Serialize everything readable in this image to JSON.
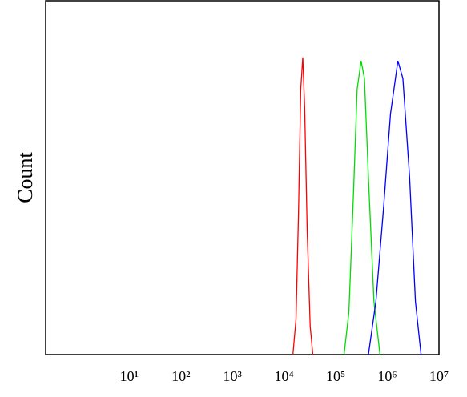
{
  "chart_data": {
    "type": "line",
    "ylabel": "Count",
    "xscale": "log",
    "xlim": [
      0.24,
      10000000
    ],
    "ylim": [
      0,
      100
    ],
    "xticks": [
      {
        "value": 10,
        "label": "10¹"
      },
      {
        "value": 100,
        "label": "10²"
      },
      {
        "value": 1000,
        "label": "10³"
      },
      {
        "value": 10000,
        "label": "10⁴"
      },
      {
        "value": 100000,
        "label": "10⁵"
      },
      {
        "value": 1000000,
        "label": "10⁶"
      },
      {
        "value": 10000000,
        "label": "10⁷"
      }
    ],
    "series": [
      {
        "color": "#ff0000",
        "x": [
          14800,
          17000,
          19000,
          21000,
          23000,
          25000,
          28000,
          32000,
          36000
        ],
        "values": [
          0,
          10,
          40,
          75,
          84,
          70,
          35,
          8,
          0
        ]
      },
      {
        "color": "#00dd00",
        "x": [
          145000,
          180000,
          220000,
          260000,
          310000,
          360000,
          430000,
          550000,
          720000
        ],
        "values": [
          0,
          12,
          45,
          75,
          83,
          78,
          50,
          15,
          0
        ]
      },
      {
        "color": "#0000ff",
        "x": [
          430000,
          600000,
          850000,
          1150000,
          1600000,
          2000000,
          2700000,
          3500000,
          4500000
        ],
        "values": [
          0,
          15,
          42,
          68,
          83,
          78,
          50,
          15,
          0
        ]
      }
    ]
  }
}
